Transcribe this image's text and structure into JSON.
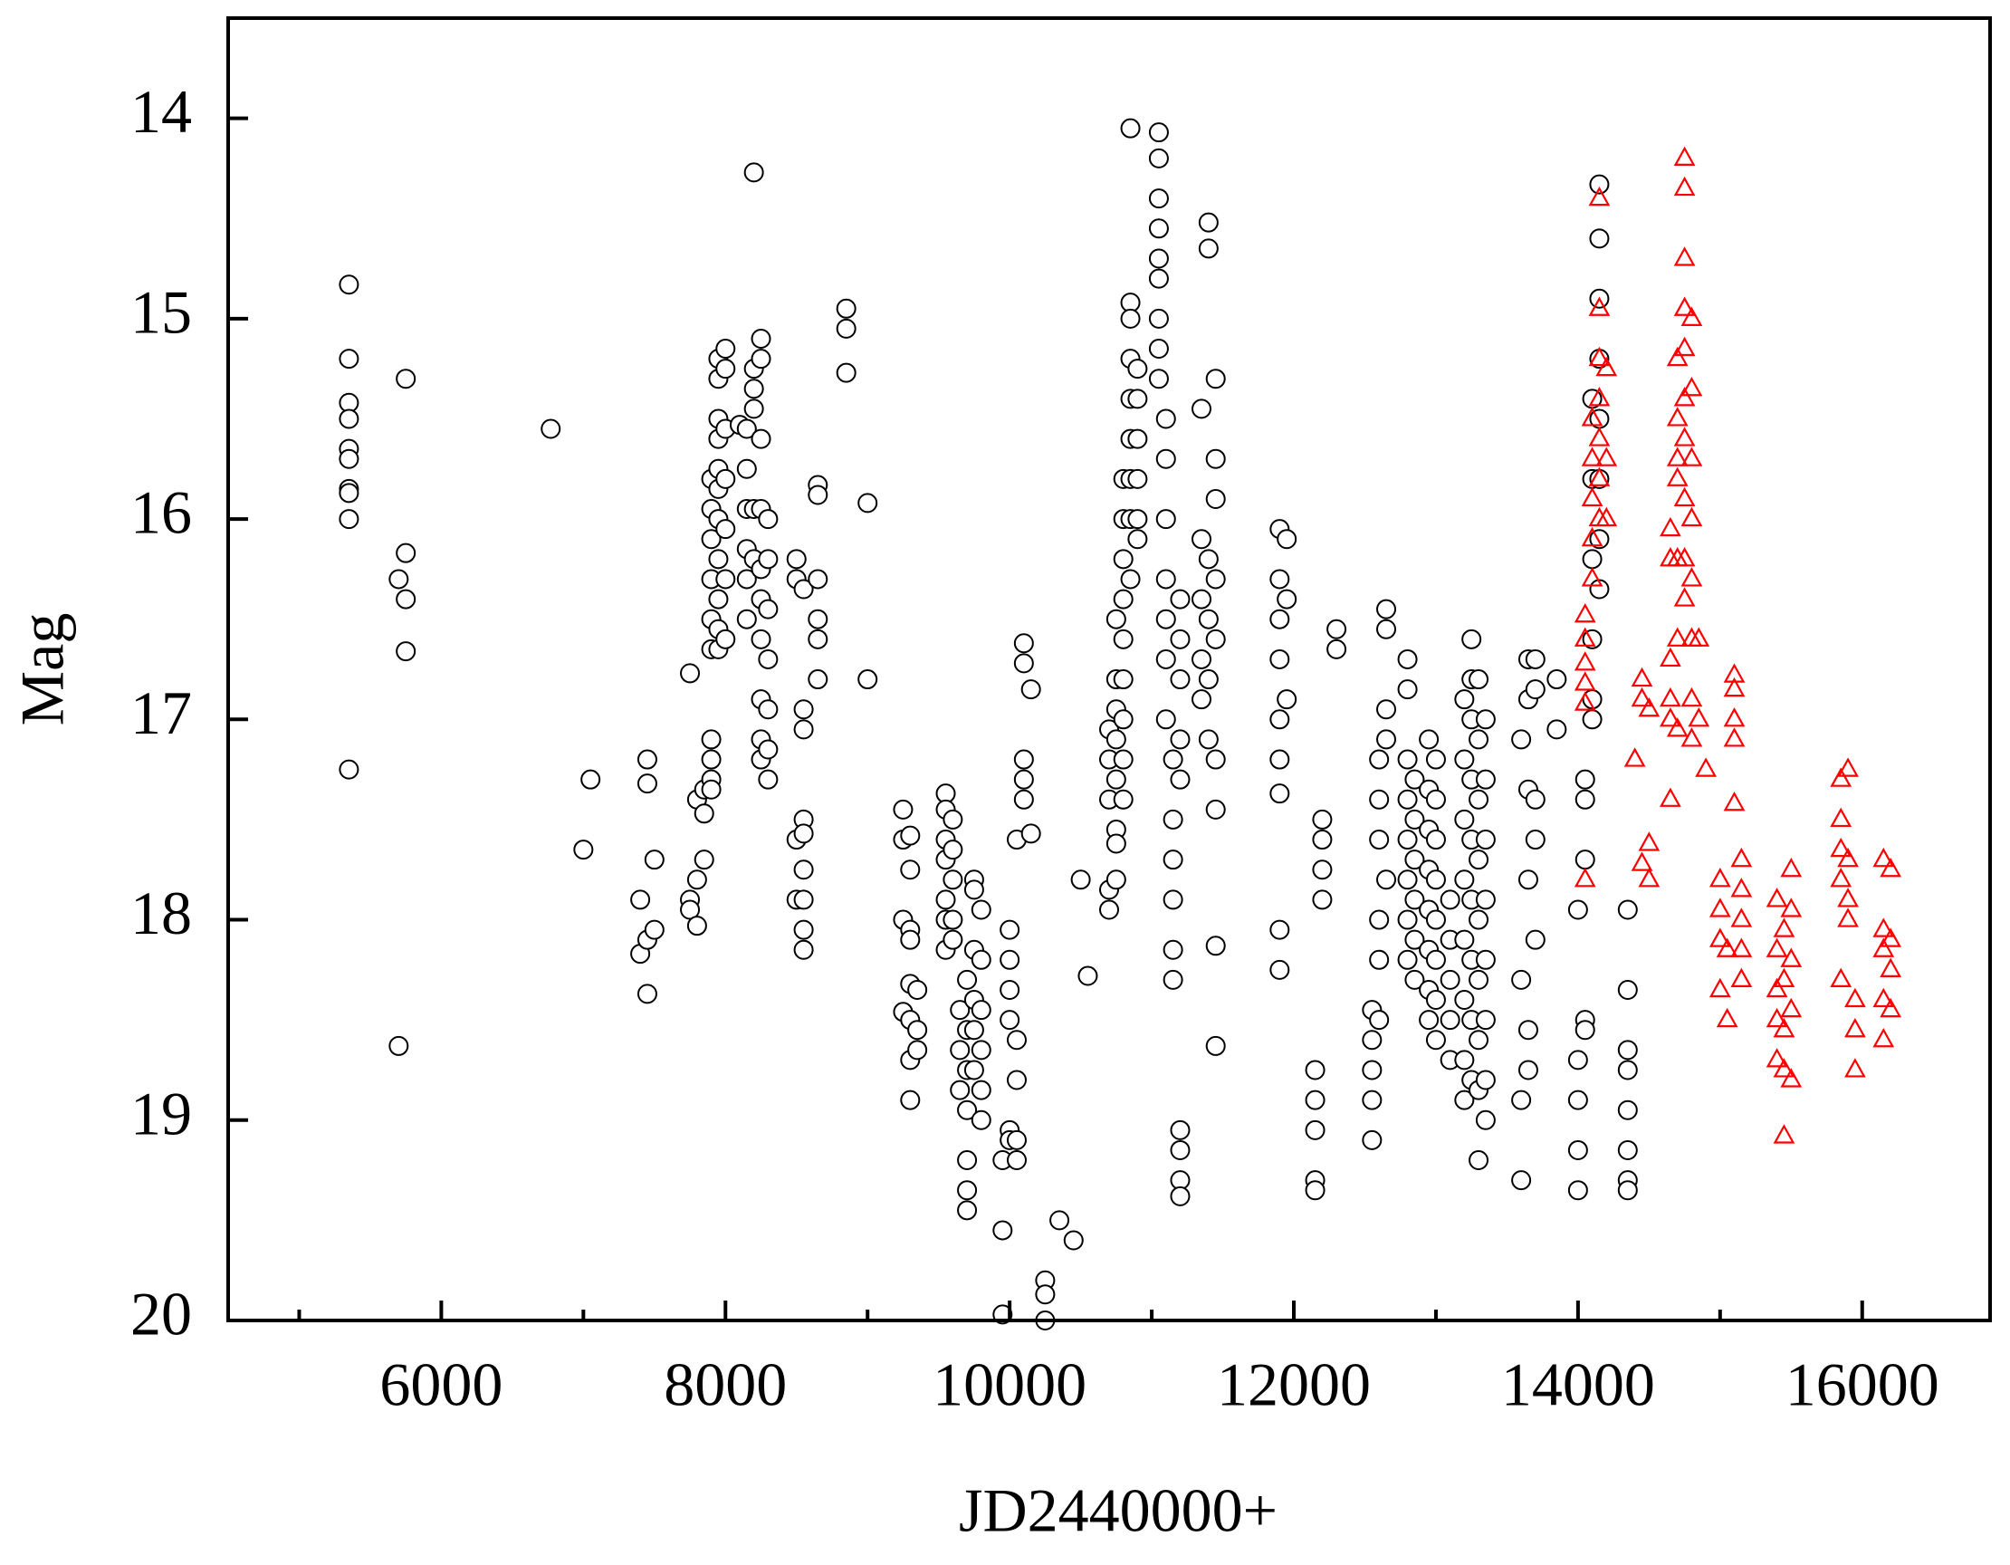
{
  "chart_data": {
    "type": "scatter",
    "x_label": "JD2440000+",
    "y_label": "Mag",
    "xlim": [
      4500,
      16900
    ],
    "ylim": [
      13.5,
      20
    ],
    "y_inverted": true,
    "xticks": [
      6000,
      8000,
      10000,
      12000,
      14000,
      16000
    ],
    "x_minor_ticks": [
      5000,
      7000,
      9000,
      11000,
      13000,
      15000
    ],
    "yticks": [
      14,
      15,
      16,
      17,
      18,
      19,
      20
    ],
    "grid": false,
    "series": [
      {
        "color": "#000000",
        "marker": "circle",
        "x": [
          5350,
          5350,
          5350,
          5350,
          5350,
          5350,
          5350,
          5350,
          5350,
          5350,
          5700,
          5700,
          5750,
          5750,
          5750,
          5750,
          6770,
          7000,
          7050,
          7400,
          7400,
          7450,
          7450,
          7450,
          7450,
          7500,
          7500,
          7750,
          7750,
          7750,
          7800,
          7800,
          7800,
          7850,
          7850,
          7850,
          7900,
          7900,
          7900,
          7900,
          7900,
          7900,
          7900,
          7900,
          7900,
          7900,
          7950,
          7950,
          7950,
          7950,
          7950,
          7950,
          7950,
          7950,
          7950,
          7950,
          7950,
          8000,
          8000,
          8000,
          8000,
          8000,
          8000,
          8000,
          8100,
          8150,
          8150,
          8150,
          8150,
          8150,
          8150,
          8200,
          8200,
          8200,
          8200,
          8200,
          8200,
          8250,
          8250,
          8250,
          8250,
          8250,
          8250,
          8250,
          8250,
          8250,
          8250,
          8300,
          8300,
          8300,
          8300,
          8300,
          8300,
          8300,
          8500,
          8500,
          8500,
          8500,
          8550,
          8550,
          8550,
          8550,
          8550,
          8550,
          8550,
          8550,
          8550,
          8650,
          8650,
          8650,
          8650,
          8650,
          8650,
          8850,
          8850,
          8850,
          9000,
          9000,
          9250,
          9250,
          9250,
          9250,
          9300,
          9300,
          9300,
          9300,
          9300,
          9300,
          9300,
          9300,
          9350,
          9350,
          9350,
          9550,
          9550,
          9550,
          9550,
          9550,
          9550,
          9550,
          9600,
          9600,
          9600,
          9600,
          9600,
          9650,
          9650,
          9650,
          9700,
          9700,
          9700,
          9700,
          9700,
          9700,
          9700,
          9750,
          9750,
          9750,
          9750,
          9750,
          9750,
          9800,
          9800,
          9800,
          9800,
          9800,
          9800,
          9950,
          9950,
          9950,
          10000,
          10000,
          10000,
          10000,
          10000,
          10000,
          10050,
          10050,
          10050,
          10050,
          10050,
          10100,
          10100,
          10100,
          10100,
          10100,
          10150,
          10150,
          10250,
          10250,
          10250,
          10350,
          10450,
          10500,
          10550,
          10700,
          10700,
          10700,
          10700,
          10700,
          10750,
          10750,
          10750,
          10750,
          10750,
          10750,
          10750,
          10750,
          10800,
          10800,
          10800,
          10800,
          10800,
          10800,
          10800,
          10800,
          10800,
          10850,
          10850,
          10850,
          10850,
          10850,
          10850,
          10850,
          10850,
          10850,
          10900,
          10900,
          10900,
          10900,
          10900,
          10900,
          11050,
          11050,
          11050,
          11050,
          11050,
          11050,
          11050,
          11050,
          11050,
          11100,
          11100,
          11100,
          11100,
          11100,
          11100,
          11100,
          11150,
          11150,
          11150,
          11150,
          11150,
          11150,
          11200,
          11200,
          11200,
          11200,
          11200,
          11200,
          11200,
          11200,
          11200,
          11350,
          11350,
          11350,
          11350,
          11350,
          11400,
          11400,
          11400,
          11400,
          11400,
          11400,
          11450,
          11450,
          11450,
          11450,
          11450,
          11450,
          11450,
          11450,
          11450,
          11900,
          11900,
          11900,
          11900,
          11900,
          11900,
          11900,
          11900,
          11900,
          11950,
          11950,
          11950,
          12150,
          12150,
          12150,
          12150,
          12150,
          12200,
          12200,
          12200,
          12200,
          12300,
          12300,
          12550,
          12550,
          12550,
          12550,
          12550,
          12600,
          12600,
          12600,
          12600,
          12600,
          12600,
          12650,
          12650,
          12650,
          12650,
          12650,
          12800,
          12800,
          12800,
          12800,
          12800,
          12800,
          12800,
          12800,
          12850,
          12850,
          12850,
          12850,
          12850,
          12850,
          12950,
          12950,
          12950,
          12950,
          12950,
          12950,
          12950,
          12950,
          13000,
          13000,
          13000,
          13000,
          13000,
          13000,
          13000,
          13000,
          13100,
          13100,
          13100,
          13100,
          13100,
          13200,
          13200,
          13200,
          13200,
          13200,
          13200,
          13200,
          13200,
          13250,
          13250,
          13250,
          13250,
          13250,
          13250,
          13250,
          13250,
          13250,
          13300,
          13300,
          13300,
          13300,
          13300,
          13300,
          13300,
          13300,
          13300,
          13350,
          13350,
          13350,
          13350,
          13350,
          13350,
          13350,
          13350,
          13600,
          13600,
          13600,
          13600,
          13650,
          13650,
          13650,
          13650,
          13650,
          13650,
          13700,
          13700,
          13700,
          13700,
          13700,
          13850,
          13850,
          14000,
          14000,
          14000,
          14000,
          14000,
          14050,
          14050,
          14050,
          14050,
          14050,
          14100,
          14100,
          14100,
          14100,
          14100,
          14100,
          14150,
          14150,
          14150,
          14150,
          14150,
          14150,
          14150,
          14150,
          14350,
          14350,
          14350,
          14350,
          14350,
          14350,
          14350,
          14350
        ],
        "values": [
          14.83,
          15.2,
          15.42,
          15.5,
          15.65,
          15.7,
          15.85,
          15.87,
          16.0,
          17.25,
          16.3,
          18.63,
          15.3,
          16.17,
          16.4,
          16.66,
          15.55,
          17.65,
          17.3,
          17.9,
          18.17,
          17.2,
          17.32,
          18.1,
          18.37,
          17.7,
          18.05,
          16.77,
          17.9,
          17.95,
          17.4,
          17.8,
          18.03,
          17.35,
          17.47,
          17.7,
          15.8,
          15.95,
          16.1,
          16.3,
          16.5,
          16.65,
          17.1,
          17.2,
          17.3,
          17.35,
          15.2,
          15.3,
          15.5,
          15.6,
          15.75,
          15.85,
          16.0,
          16.2,
          16.4,
          16.55,
          16.65,
          15.15,
          15.25,
          15.55,
          15.8,
          16.05,
          16.3,
          16.6,
          15.53,
          15.55,
          15.75,
          15.95,
          16.15,
          16.3,
          16.5,
          14.27,
          15.25,
          15.35,
          15.45,
          15.95,
          16.2,
          15.1,
          15.2,
          15.6,
          15.95,
          16.25,
          16.4,
          16.6,
          16.9,
          17.1,
          17.2,
          16.0,
          16.2,
          16.45,
          16.7,
          16.95,
          17.15,
          17.3,
          16.2,
          16.3,
          17.6,
          17.9,
          16.35,
          16.95,
          17.05,
          17.5,
          17.57,
          17.75,
          17.9,
          18.05,
          18.15,
          15.83,
          15.88,
          16.3,
          16.5,
          16.6,
          16.8,
          14.95,
          15.05,
          15.27,
          15.92,
          16.8,
          17.45,
          17.6,
          18.0,
          18.46,
          17.58,
          17.75,
          18.05,
          18.1,
          18.32,
          18.5,
          18.7,
          18.9,
          18.35,
          18.55,
          18.65,
          17.37,
          17.45,
          17.6,
          17.7,
          17.9,
          18.0,
          18.15,
          17.5,
          17.65,
          17.8,
          18.0,
          18.1,
          18.45,
          18.65,
          18.85,
          18.3,
          18.55,
          18.75,
          18.95,
          19.2,
          19.35,
          19.45,
          17.8,
          17.85,
          18.15,
          18.4,
          18.55,
          18.75,
          17.95,
          18.2,
          18.45,
          18.65,
          18.85,
          19.0,
          19.55,
          19.97,
          19.2,
          18.05,
          18.2,
          18.35,
          18.5,
          19.05,
          19.1,
          18.6,
          18.8,
          19.1,
          19.2,
          17.6,
          16.62,
          16.72,
          17.2,
          17.3,
          17.4,
          16.85,
          17.57,
          19.8,
          19.87,
          20.0,
          19.5,
          19.6,
          17.8,
          18.28,
          17.05,
          17.2,
          17.4,
          17.85,
          17.95,
          16.5,
          16.8,
          16.95,
          17.1,
          17.3,
          17.55,
          17.62,
          17.8,
          15.8,
          16.0,
          16.2,
          16.4,
          16.6,
          16.8,
          17.0,
          17.2,
          17.4,
          14.05,
          14.92,
          15.0,
          15.2,
          15.4,
          15.6,
          15.8,
          16.0,
          16.3,
          15.25,
          15.4,
          15.6,
          15.8,
          16.0,
          16.1,
          14.07,
          14.2,
          14.4,
          14.55,
          14.7,
          14.8,
          15.0,
          15.15,
          15.3,
          15.5,
          15.7,
          16.0,
          16.3,
          16.5,
          16.7,
          17.0,
          17.2,
          17.5,
          17.7,
          17.9,
          18.15,
          18.3,
          16.4,
          16.6,
          16.8,
          17.1,
          17.3,
          19.05,
          19.15,
          19.3,
          19.38,
          15.45,
          16.1,
          16.4,
          16.7,
          16.9,
          14.52,
          14.65,
          16.2,
          16.5,
          16.8,
          17.1,
          15.3,
          15.7,
          15.9,
          16.3,
          16.6,
          17.2,
          17.45,
          18.13,
          18.63,
          16.05,
          16.3,
          16.5,
          16.7,
          17.0,
          17.2,
          17.37,
          18.05,
          18.25,
          16.1,
          16.4,
          16.9,
          18.75,
          18.9,
          19.05,
          19.3,
          19.35,
          17.5,
          17.6,
          17.75,
          17.9,
          16.55,
          16.65,
          18.45,
          18.6,
          18.75,
          18.9,
          19.1,
          17.2,
          17.4,
          17.6,
          18.0,
          18.2,
          18.5,
          16.45,
          16.55,
          16.95,
          17.1,
          17.8,
          16.7,
          16.85,
          17.2,
          17.4,
          17.6,
          17.8,
          18.0,
          18.2,
          17.3,
          17.5,
          17.7,
          17.9,
          18.1,
          18.3,
          17.1,
          17.35,
          17.55,
          17.75,
          17.95,
          18.15,
          18.35,
          18.5,
          17.2,
          17.4,
          17.6,
          17.8,
          18.0,
          18.2,
          18.4,
          18.6,
          17.9,
          18.1,
          18.3,
          18.5,
          18.7,
          16.9,
          17.2,
          17.5,
          17.8,
          18.1,
          18.4,
          18.7,
          18.9,
          16.6,
          16.8,
          17.0,
          17.3,
          17.6,
          17.9,
          18.2,
          18.5,
          18.8,
          16.8,
          17.1,
          17.4,
          17.7,
          18.0,
          18.3,
          18.6,
          18.85,
          19.2,
          17.0,
          17.3,
          17.6,
          17.9,
          18.2,
          18.5,
          18.8,
          19.0,
          17.1,
          18.9,
          19.3,
          18.3,
          16.7,
          16.9,
          17.35,
          17.8,
          18.55,
          18.75,
          16.7,
          16.85,
          17.4,
          17.6,
          18.1,
          16.8,
          17.05,
          17.95,
          18.9,
          19.15,
          19.35,
          18.7,
          17.3,
          17.4,
          17.7,
          18.5,
          18.55,
          15.4,
          15.8,
          16.2,
          16.6,
          16.9,
          17.0,
          14.33,
          14.6,
          14.9,
          15.2,
          15.5,
          15.8,
          16.1,
          16.35,
          17.95,
          18.35,
          18.65,
          18.75,
          18.95,
          19.15,
          19.3,
          19.35
        ]
      },
      {
        "color": "#ff0000",
        "marker": "triangle",
        "x": [
          14050,
          14050,
          14050,
          14050,
          14050,
          14050,
          14100,
          14100,
          14100,
          14100,
          14100,
          14150,
          14150,
          14150,
          14150,
          14150,
          14150,
          14150,
          14200,
          14200,
          14200,
          14400,
          14450,
          14450,
          14450,
          14500,
          14500,
          14500,
          14650,
          14650,
          14650,
          14650,
          14650,
          14650,
          14700,
          14700,
          14700,
          14700,
          14700,
          14700,
          14700,
          14750,
          14750,
          14750,
          14750,
          14750,
          14750,
          14750,
          14750,
          14750,
          14750,
          14800,
          14800,
          14800,
          14800,
          14800,
          14800,
          14800,
          14800,
          14850,
          14850,
          14900,
          15000,
          15000,
          15000,
          15000,
          15050,
          15050,
          15100,
          15100,
          15100,
          15100,
          15100,
          15150,
          15150,
          15150,
          15150,
          15150,
          15400,
          15400,
          15400,
          15400,
          15400,
          15450,
          15450,
          15450,
          15450,
          15450,
          15500,
          15500,
          15500,
          15500,
          15500,
          15850,
          15850,
          15850,
          15850,
          15850,
          15900,
          15900,
          15900,
          15900,
          15950,
          15950,
          15950,
          16150,
          16150,
          16150,
          16150,
          16150,
          16200,
          16200,
          16200,
          16200
        ],
        "values": [
          16.48,
          16.6,
          16.72,
          16.82,
          16.92,
          17.8,
          15.5,
          15.7,
          15.9,
          16.1,
          16.3,
          14.4,
          14.95,
          15.2,
          15.4,
          15.6,
          15.8,
          16.0,
          15.25,
          15.7,
          16.0,
          17.2,
          16.8,
          16.9,
          17.72,
          16.95,
          17.62,
          17.8,
          16.05,
          16.2,
          16.7,
          16.9,
          17.0,
          17.4,
          15.7,
          15.2,
          15.5,
          15.8,
          16.2,
          16.6,
          17.05,
          14.2,
          14.35,
          14.7,
          14.95,
          15.15,
          15.4,
          15.6,
          15.9,
          16.2,
          16.4,
          15.0,
          15.35,
          15.7,
          16.0,
          16.3,
          16.6,
          16.9,
          17.1,
          16.6,
          17.0,
          17.25,
          17.8,
          17.95,
          18.1,
          18.35,
          18.15,
          18.5,
          16.78,
          16.85,
          17.0,
          17.1,
          17.42,
          17.7,
          17.85,
          18.0,
          18.15,
          18.3,
          17.9,
          18.15,
          18.35,
          18.5,
          18.7,
          18.05,
          18.3,
          18.55,
          18.75,
          19.08,
          17.75,
          17.95,
          18.2,
          18.45,
          18.8,
          17.3,
          17.5,
          17.65,
          17.8,
          18.3,
          17.25,
          17.7,
          17.9,
          18.0,
          18.4,
          18.55,
          18.75,
          17.7,
          18.05,
          18.15,
          18.4,
          18.6,
          17.75,
          18.1,
          18.25,
          18.45
        ]
      }
    ]
  }
}
